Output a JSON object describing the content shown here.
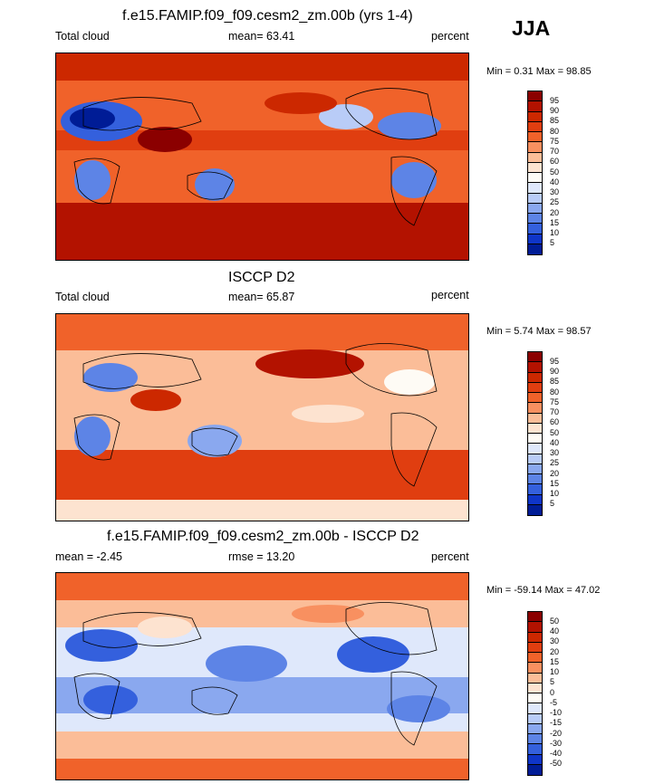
{
  "season": "JJA",
  "panels": [
    {
      "title": "f.e15.FAMIP.f09_f09.cesm2_zm.00b (yrs 1-4)",
      "left_label": "Total cloud",
      "center_label": "mean=  63.41",
      "right_label": "percent",
      "minmax": "Min =   0.31 Max =  98.85",
      "colorbar_labels": [
        "95",
        "90",
        "85",
        "80",
        "75",
        "70",
        "60",
        "50",
        "40",
        "30",
        "25",
        "20",
        "15",
        "10",
        "5"
      ],
      "colors": [
        "#8b0000",
        "#b31200",
        "#cc2800",
        "#e03e10",
        "#f0622a",
        "#f89060",
        "#fbbd98",
        "#fde3d0",
        "#fefbf5",
        "#dfe8fb",
        "#b9ccf7",
        "#8aa8ef",
        "#5d84e6",
        "#3460dd",
        "#0f35c8",
        "#001c96"
      ]
    },
    {
      "title": "ISCCP D2",
      "left_label": "Total cloud",
      "center_label": "mean=  65.87",
      "right_label": "percent",
      "minmax": "Min =   5.74 Max =  98.57",
      "colorbar_labels": [
        "95",
        "90",
        "85",
        "80",
        "75",
        "70",
        "60",
        "50",
        "40",
        "30",
        "25",
        "20",
        "15",
        "10",
        "5"
      ],
      "colors": [
        "#8b0000",
        "#b31200",
        "#cc2800",
        "#e03e10",
        "#f0622a",
        "#f89060",
        "#fbbd98",
        "#fde3d0",
        "#fefbf5",
        "#dfe8fb",
        "#b9ccf7",
        "#8aa8ef",
        "#5d84e6",
        "#3460dd",
        "#0f35c8",
        "#001c96"
      ]
    },
    {
      "title": "f.e15.FAMIP.f09_f09.cesm2_zm.00b - ISCCP D2",
      "left_label": "mean =  -2.45",
      "center_label": "rmse =  13.20",
      "right_label": "percent",
      "minmax": "Min = -59.14 Max =  47.02",
      "colorbar_labels": [
        "50",
        "40",
        "30",
        "20",
        "15",
        "10",
        "5",
        "0",
        "-5",
        "-10",
        "-15",
        "-20",
        "-30",
        "-40",
        "-50"
      ],
      "colors": [
        "#8b0000",
        "#b31200",
        "#cc2800",
        "#e03e10",
        "#f0622a",
        "#f89060",
        "#fbbd98",
        "#fde3d0",
        "#fefbf5",
        "#dfe8fb",
        "#b9ccf7",
        "#8aa8ef",
        "#5d84e6",
        "#3460dd",
        "#0f35c8",
        "#001c96"
      ]
    }
  ]
}
